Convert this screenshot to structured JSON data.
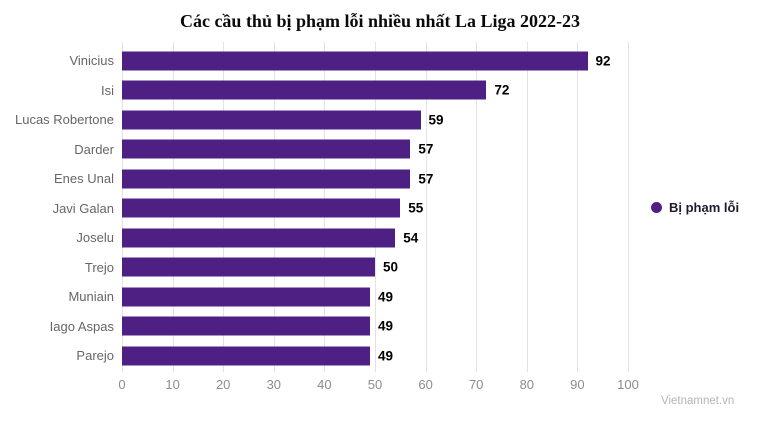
{
  "title": "Các cầu thủ bị phạm lỗi nhiều nhất La Liga 2022-23",
  "watermark": "Vietnamnet.vn",
  "legend": {
    "label": "Bị phạm lỗi"
  },
  "colors": {
    "bar": "#4f2084",
    "legend_marker": "#4f2084",
    "category_label": "#666666",
    "tick_label": "#8c8c8c",
    "gridline": "#e3e3e3",
    "value_label": "#000000"
  },
  "chart_data": {
    "type": "bar",
    "orientation": "horizontal",
    "title": "Các cầu thủ bị phạm lỗi nhiều nhất La Liga 2022-23",
    "categories": [
      "Vinicius",
      "Isi",
      "Lucas Robertone",
      "Darder",
      "Enes Unal",
      "Javi Galan",
      "Joselu",
      "Trejo",
      "Muniain",
      "Iago Aspas",
      "Parejo"
    ],
    "series": [
      {
        "name": "Bị phạm lỗi",
        "values": [
          92,
          72,
          59,
          57,
          57,
          55,
          54,
          50,
          49,
          49,
          49
        ]
      }
    ],
    "xlim": [
      0,
      100
    ],
    "x_ticks": [
      0,
      10,
      20,
      30,
      40,
      50,
      60,
      70,
      80,
      90,
      100
    ],
    "grid": true,
    "value_labels": true,
    "legend_position": "right"
  }
}
